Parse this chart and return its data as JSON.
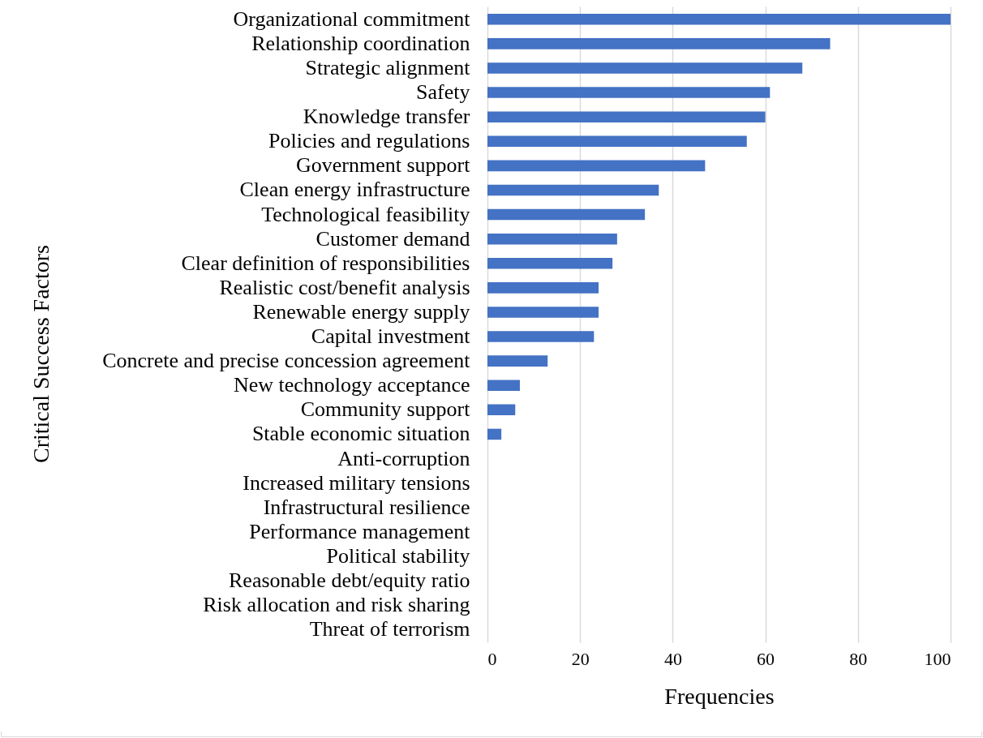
{
  "chart_data": {
    "type": "bar",
    "orientation": "horizontal",
    "xlabel": "Frequencies",
    "ylabel": "Critical Success Factors",
    "categories": [
      "Organizational commitment",
      "Relationship coordination",
      "Strategic alignment",
      "Safety",
      "Knowledge transfer",
      "Policies and regulations",
      "Government support",
      "Clean energy infrastructure",
      "Technological feasibility",
      "Customer demand",
      "Clear definition of responsibilities",
      "Realistic cost/benefit analysis",
      "Renewable energy supply",
      "Capital investment",
      "Concrete and precise concession agreement",
      "New technology acceptance",
      "Community support",
      "Stable economic situation",
      "Anti-corruption",
      "Increased military tensions",
      "Infrastructural resilience",
      "Performance management",
      "Political stability",
      "Reasonable debt/equity ratio",
      "Risk allocation and risk sharing",
      "Threat of terrorism"
    ],
    "values": [
      100,
      74,
      68,
      61,
      60,
      56,
      47,
      37,
      34,
      28,
      27,
      24,
      24,
      23,
      13,
      7,
      6,
      3,
      0,
      0,
      0,
      0,
      0,
      0,
      0,
      0
    ],
    "color": "#4472c4",
    "xlim": [
      0,
      100
    ],
    "xticks": [
      0,
      20,
      40,
      60,
      80,
      100
    ],
    "grid": "x"
  }
}
